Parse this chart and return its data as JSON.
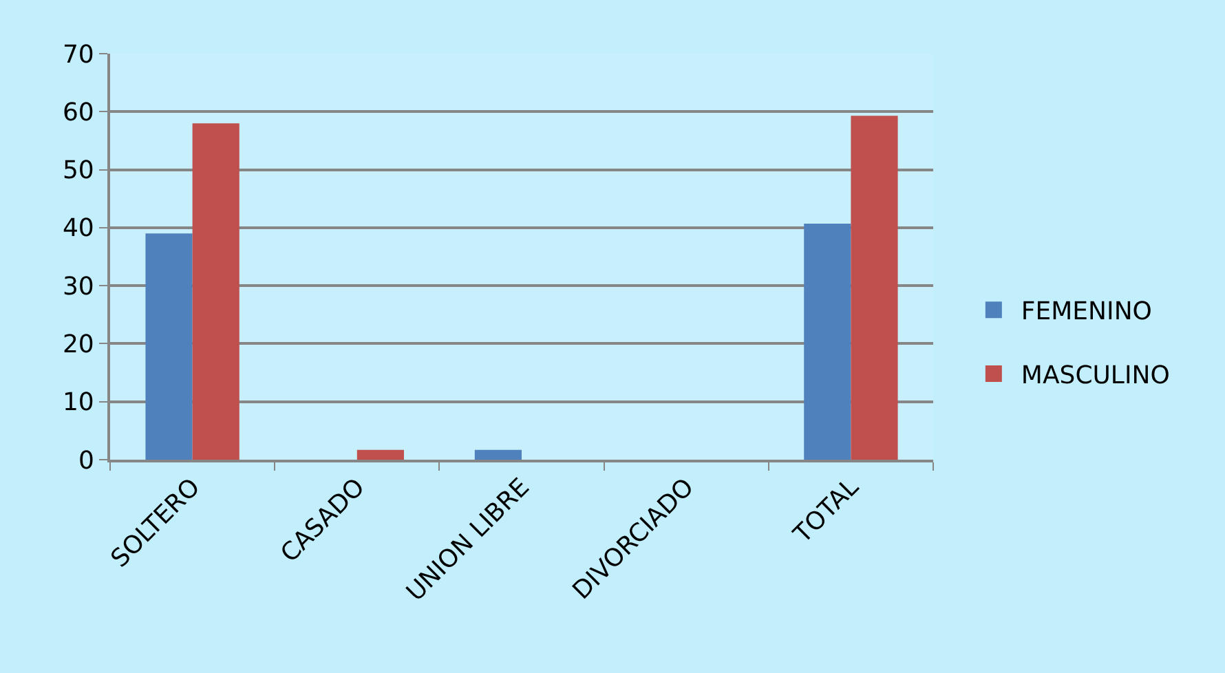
{
  "chart_data": {
    "type": "bar",
    "categories": [
      "SOLTERO",
      "CASADO",
      "UNION LIBRE",
      "DIVORCIADO",
      "TOTAL"
    ],
    "series": [
      {
        "name": "FEMENINO",
        "color": "#4f81bd",
        "values": [
          39,
          0,
          1.7,
          0,
          40.7
        ]
      },
      {
        "name": "MASCULINO",
        "color": "#c0504d",
        "values": [
          58,
          1.7,
          0,
          0,
          59.3
        ]
      }
    ],
    "ylim": [
      0,
      70
    ],
    "yticks": [
      0,
      10,
      20,
      30,
      40,
      50,
      60,
      70
    ],
    "grid": "y",
    "legend": "right"
  }
}
